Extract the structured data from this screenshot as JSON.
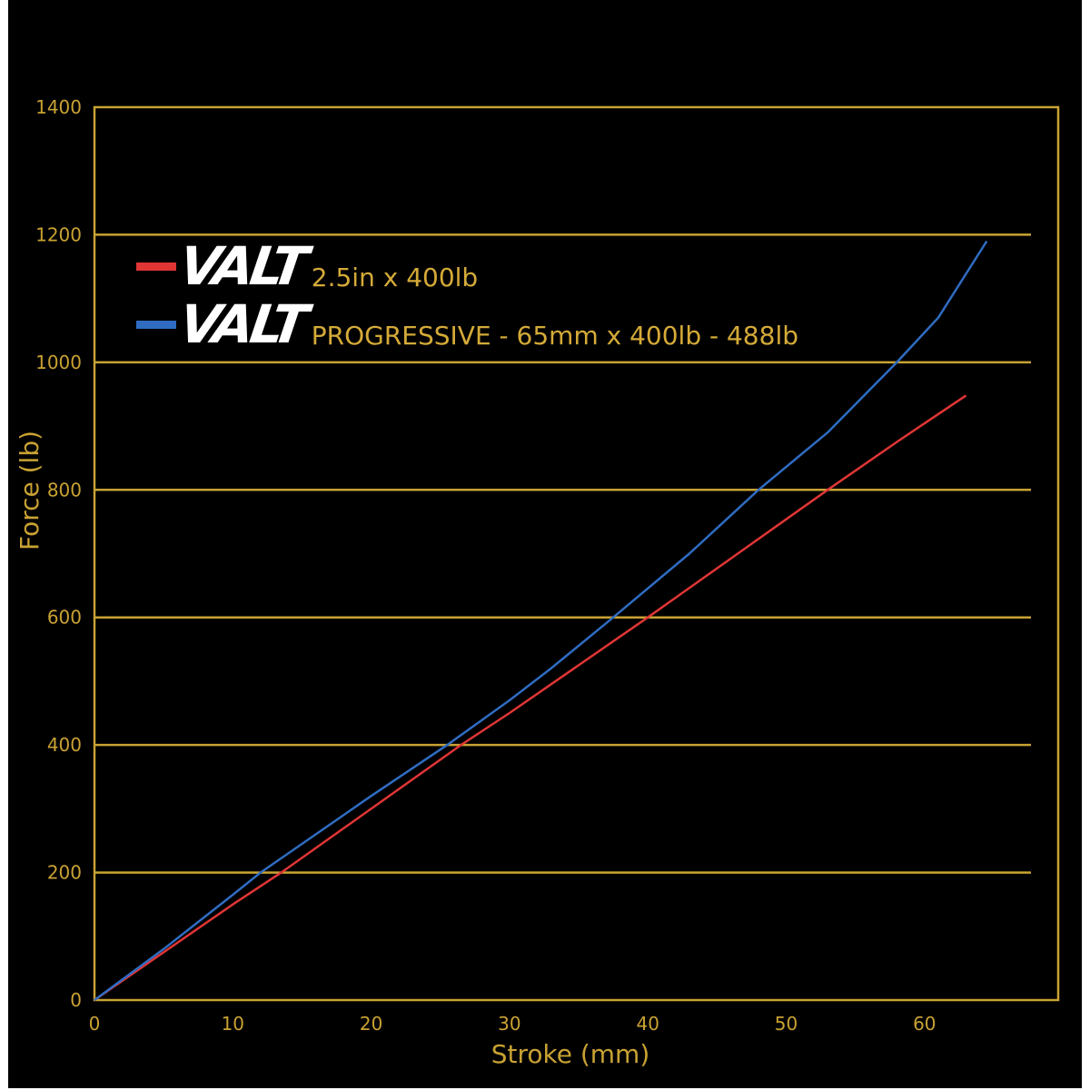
{
  "chart_data": {
    "type": "line",
    "xlabel": "Stroke (mm)",
    "ylabel": "Force (lb)",
    "xlim": [
      0,
      70
    ],
    "ylim": [
      0,
      1400
    ],
    "xticks": [
      "0",
      "10",
      "20",
      "30",
      "40",
      "50",
      "60"
    ],
    "yticks": [
      "0",
      "200",
      "400",
      "600",
      "800",
      "1000",
      "1200",
      "1400"
    ],
    "grid": "horizontal",
    "legend_placement": "top-left",
    "series": [
      {
        "name": "2.5in x 400lb",
        "logo": "VALT",
        "color": "#e03535",
        "x": [
          0,
          10,
          13.5,
          20,
          26.5,
          30,
          40,
          46.5,
          53,
          58,
          63
        ],
        "y": [
          0,
          150,
          200,
          300,
          400,
          450,
          600,
          700,
          800,
          875,
          948
        ]
      },
      {
        "name": "PROGRESSIVE - 65mm x 400lb - 488lb",
        "logo": "VALT",
        "color": "#2f6cc2",
        "x": [
          0,
          5,
          10,
          12,
          20,
          25.5,
          30,
          33,
          37.5,
          43,
          48,
          53,
          58,
          61,
          64.5
        ],
        "y": [
          0,
          80,
          165,
          200,
          320,
          400,
          470,
          520,
          600,
          700,
          800,
          890,
          1000,
          1070,
          1190
        ]
      }
    ],
    "colors": {
      "background": "#000000",
      "axis": "#c9a233"
    }
  }
}
